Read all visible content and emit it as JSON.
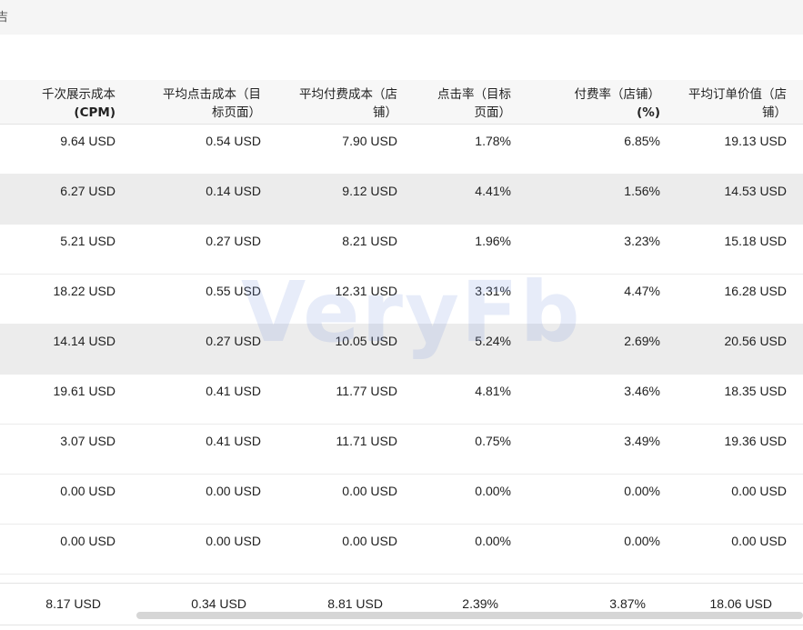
{
  "topbar": {
    "crumb": "吉"
  },
  "columns": [
    {
      "line1": "千次展示成本",
      "line2": "(CPM)"
    },
    {
      "line1": "平均点击成本（目",
      "line2": "标页面）"
    },
    {
      "line1": "平均付费成本（店",
      "line2": "铺）"
    },
    {
      "line1": "点击率（目标",
      "line2": "页面）"
    },
    {
      "line1": "付费率（店铺）",
      "line2": "(%)"
    },
    {
      "line1": "平均订单价值（店",
      "line2": "铺）"
    }
  ],
  "rows": [
    [
      "9.64 USD",
      "0.54 USD",
      "7.90 USD",
      "1.78%",
      "6.85%",
      "19.13 USD"
    ],
    [
      "6.27 USD",
      "0.14 USD",
      "9.12 USD",
      "4.41%",
      "1.56%",
      "14.53 USD"
    ],
    [
      "5.21 USD",
      "0.27 USD",
      "8.21 USD",
      "1.96%",
      "3.23%",
      "15.18 USD"
    ],
    [
      "18.22 USD",
      "0.55 USD",
      "12.31 USD",
      "3.31%",
      "4.47%",
      "16.28 USD"
    ],
    [
      "14.14 USD",
      "0.27 USD",
      "10.05 USD",
      "5.24%",
      "2.69%",
      "20.56 USD"
    ],
    [
      "19.61 USD",
      "0.41 USD",
      "11.77 USD",
      "4.81%",
      "3.46%",
      "18.35 USD"
    ],
    [
      "3.07 USD",
      "0.41 USD",
      "11.71 USD",
      "0.75%",
      "3.49%",
      "19.36 USD"
    ],
    [
      "0.00 USD",
      "0.00 USD",
      "0.00 USD",
      "0.00%",
      "0.00%",
      "0.00 USD"
    ],
    [
      "0.00 USD",
      "0.00 USD",
      "0.00 USD",
      "0.00%",
      "0.00%",
      "0.00 USD"
    ]
  ],
  "totals": [
    "8.17 USD",
    "0.34 USD",
    "8.81 USD",
    "2.39%",
    "3.87%",
    "18.06 USD"
  ],
  "watermark": "VeryFb"
}
